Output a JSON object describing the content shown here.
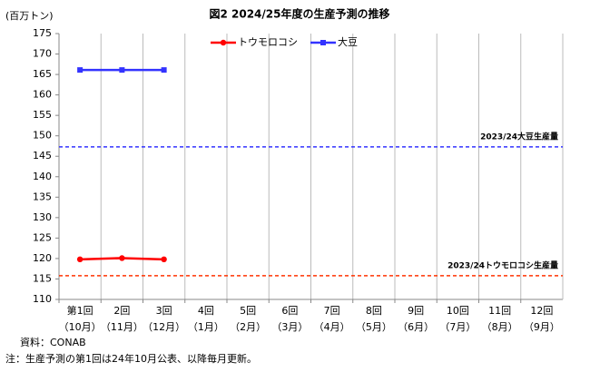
{
  "chart_data": {
    "type": "line",
    "title": "図2  2024/25年度の生産予測の推移",
    "y_axis_label": "(百万トン)",
    "categories": [
      [
        "第1回",
        "（10月）"
      ],
      [
        "2回",
        "（11月）"
      ],
      [
        "3回",
        "（12月）"
      ],
      [
        "4回",
        "（1月）"
      ],
      [
        "5回",
        "（2月）"
      ],
      [
        "6回",
        "（3月）"
      ],
      [
        "7回",
        "（4月）"
      ],
      [
        "8回",
        "（5月）"
      ],
      [
        "9回",
        "（6月）"
      ],
      [
        "10回",
        "（7月）"
      ],
      [
        "11回",
        "（8月）"
      ],
      [
        "12回",
        "（9月）"
      ]
    ],
    "series": [
      {
        "name": "トウモロコシ",
        "color": "#ff0000",
        "marker": "circle",
        "values": [
          119.8,
          120.1,
          119.8,
          null,
          null,
          null,
          null,
          null,
          null,
          null,
          null,
          null
        ]
      },
      {
        "name": "大豆",
        "color": "#3333ff",
        "marker": "square",
        "values": [
          166.1,
          166.1,
          166.1,
          null,
          null,
          null,
          null,
          null,
          null,
          null,
          null,
          null
        ]
      }
    ],
    "reference_lines": [
      {
        "label": "2023/24大豆生産量",
        "value": 147.3,
        "color": "#3333ff"
      },
      {
        "label": "2023/24トウモロコシ生産量",
        "value": 115.8,
        "color": "#ff3300"
      }
    ],
    "ylim": [
      110,
      175
    ],
    "yticks": [
      110,
      115,
      120,
      125,
      130,
      135,
      140,
      145,
      150,
      155,
      160,
      165,
      170,
      175
    ],
    "legend": "top",
    "notes": [
      "資料：CONAB",
      "注：生産予測の第1回は24年10月公表、以降毎月更新。"
    ]
  }
}
